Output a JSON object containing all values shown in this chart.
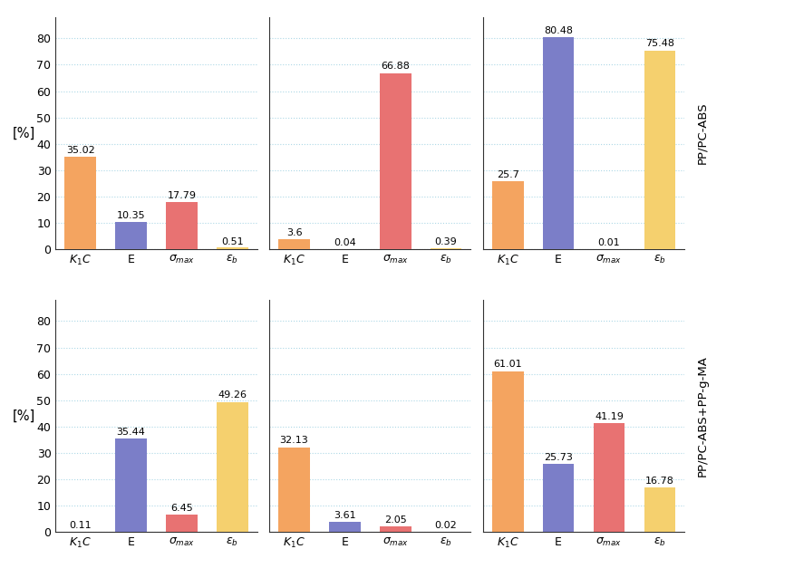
{
  "row_labels": [
    "PP/PC-ABS",
    "PP/PC-ABS+PP-g-MA"
  ],
  "x_labels": [
    "$K_1C$",
    "E",
    "$\\sigma_{max}$",
    "$\\varepsilon_b$"
  ],
  "bar_colors": [
    "#F4A460",
    "#7B7EC8",
    "#E87272",
    "#F5D06E"
  ],
  "values": [
    [
      [
        35.02,
        10.35,
        17.79,
        0.51
      ],
      [
        3.6,
        0.04,
        66.88,
        0.39
      ],
      [
        25.7,
        80.48,
        0.01,
        75.48
      ]
    ],
    [
      [
        0.11,
        35.44,
        6.45,
        49.26
      ],
      [
        32.13,
        3.61,
        2.05,
        0.02
      ],
      [
        61.01,
        25.73,
        41.19,
        16.78
      ]
    ]
  ],
  "value_labels": [
    [
      [
        "35.02",
        "10.35",
        "17.79",
        "0.51"
      ],
      [
        "3.6",
        "0.04",
        "66.88",
        "0.39"
      ],
      [
        "25.7",
        "80.48",
        "0.01",
        "75.48"
      ]
    ],
    [
      [
        "0.11",
        "35.44",
        "6.45",
        "49.26"
      ],
      [
        "32.13",
        "3.61",
        "2.05",
        "0.02"
      ],
      [
        "61.01",
        "25.73",
        "41.19",
        "16.78"
      ]
    ]
  ],
  "ylim": [
    0,
    88
  ],
  "yticks": [
    0,
    10,
    20,
    30,
    40,
    50,
    60,
    70,
    80
  ],
  "ylabel": "[%]",
  "background_color": "#FFFFFF",
  "grid_color": "#ADD8E6",
  "tick_fontsize": 9,
  "value_fontsize": 8,
  "label_fontsize": 9.5
}
